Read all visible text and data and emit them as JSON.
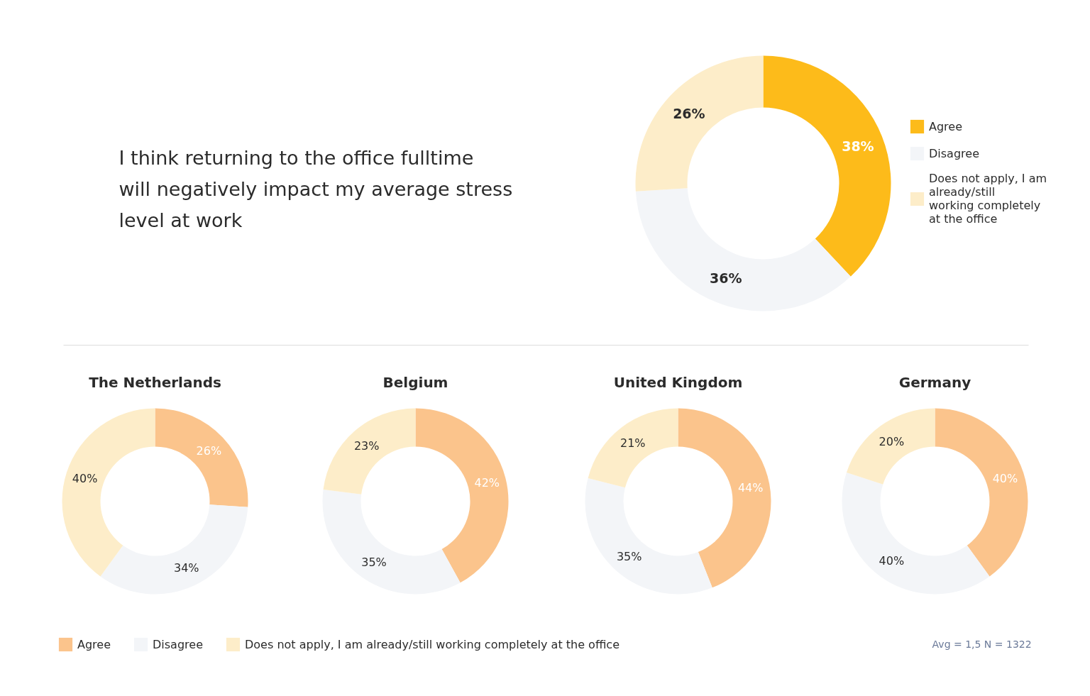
{
  "chart_data": [
    {
      "type": "donut",
      "title": "I think returning to the office fulltime will negatively impact my average stress level at work",
      "categories": [
        "Agree",
        "Disagree",
        "Does not apply, I am already/still working completely at the office"
      ],
      "values": [
        38,
        36,
        26
      ],
      "colors": [
        "#fdbb1a",
        "#f3f5f8",
        "#fdedc9"
      ],
      "value_labels": [
        "38%",
        "36%",
        "26%"
      ],
      "legend": "right"
    },
    {
      "type": "donut",
      "title": "The Netherlands",
      "categories": [
        "Agree",
        "Disagree",
        "Does not apply, I am already/still working completely at the office"
      ],
      "values": [
        26,
        34,
        40
      ],
      "colors": [
        "#fbc48c",
        "#f3f5f8",
        "#fdedc9"
      ],
      "value_labels": [
        "26%",
        "34%",
        "40%"
      ],
      "legend": "bottom"
    },
    {
      "type": "donut",
      "title": "Belgium",
      "categories": [
        null,
        null,
        null
      ],
      "values": [
        42,
        35,
        23
      ],
      "colors": [
        "#fbc48c",
        "#f3f5f8",
        "#fdedc9"
      ],
      "value_labels": [
        "42%",
        "35%",
        "23%"
      ]
    },
    {
      "type": "donut",
      "title": "United Kingdom",
      "categories": [
        null,
        null,
        null
      ],
      "values": [
        44,
        35,
        21
      ],
      "colors": [
        "#fbc48c",
        "#f3f5f8",
        "#fdedc9"
      ],
      "value_labels": [
        "44%",
        "35%",
        "21%"
      ]
    },
    {
      "type": "donut",
      "title": "Germany",
      "categories": [
        null,
        null,
        null
      ],
      "values": [
        40,
        40,
        20
      ],
      "colors": [
        "#fbc48c",
        "#f3f5f8",
        "#fdedc9"
      ],
      "value_labels": [
        "40%",
        "40%",
        "20%"
      ],
      "annotations": [
        "Avg = 1,5   N = 1322"
      ]
    }
  ]
}
